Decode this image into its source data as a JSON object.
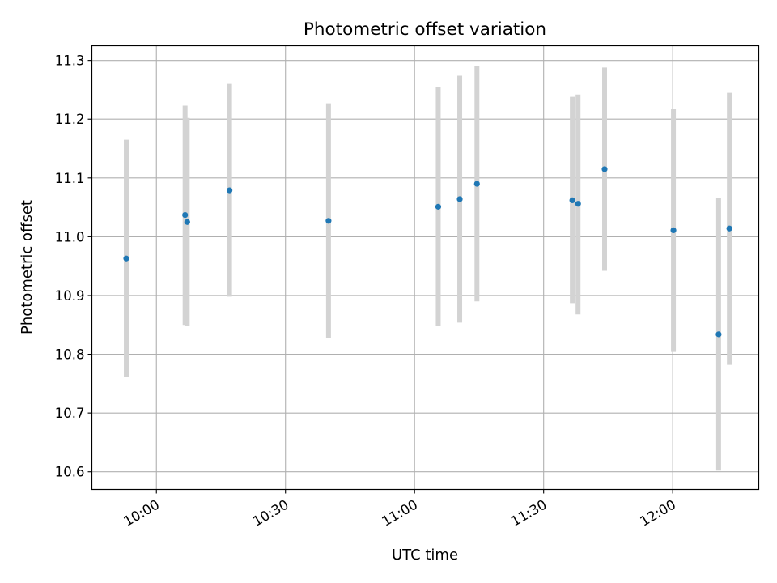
{
  "chart_data": {
    "type": "scatter",
    "title": "Photometric offset variation",
    "xlabel": "UTC time",
    "ylabel": "Photometric offset",
    "x_unit": "time of day (HH:MM)",
    "xlim": [
      "09:45",
      "12:20"
    ],
    "ylim": [
      10.57,
      11.325
    ],
    "x_ticks": [
      "10:00",
      "10:30",
      "11:00",
      "11:30",
      "12:00"
    ],
    "y_ticks": [
      10.6,
      10.7,
      10.8,
      10.9,
      11.0,
      11.1,
      11.2,
      11.3
    ],
    "y_tick_labels": [
      "10.6",
      "10.7",
      "10.8",
      "10.9",
      "11.0",
      "11.1",
      "11.2",
      "11.3"
    ],
    "grid": true,
    "marker_color": "#1f77b4",
    "errorbar_color": "#d3d3d3",
    "series": [
      {
        "points": [
          {
            "time": "09:53",
            "y": 10.963,
            "y_low": 10.762,
            "y_high": 11.165
          },
          {
            "time": "10:06:40",
            "y": 11.037,
            "y_low": 10.85,
            "y_high": 11.223
          },
          {
            "time": "10:07:10",
            "y": 11.025,
            "y_low": 10.848,
            "y_high": 11.202
          },
          {
            "time": "10:17",
            "y": 11.079,
            "y_low": 10.898,
            "y_high": 11.26
          },
          {
            "time": "10:40",
            "y": 11.027,
            "y_low": 10.827,
            "y_high": 11.227
          },
          {
            "time": "11:05:30",
            "y": 11.051,
            "y_low": 10.848,
            "y_high": 11.254
          },
          {
            "time": "11:10:30",
            "y": 11.064,
            "y_low": 10.854,
            "y_high": 11.274
          },
          {
            "time": "11:14:30",
            "y": 11.09,
            "y_low": 10.89,
            "y_high": 11.29
          },
          {
            "time": "11:36:40",
            "y": 11.062,
            "y_low": 10.887,
            "y_high": 11.238
          },
          {
            "time": "11:38",
            "y": 11.056,
            "y_low": 10.868,
            "y_high": 11.242
          },
          {
            "time": "11:44:10",
            "y": 11.115,
            "y_low": 10.942,
            "y_high": 11.288
          },
          {
            "time": "12:00:10",
            "y": 11.011,
            "y_low": 10.804,
            "y_high": 11.218
          },
          {
            "time": "12:10:40",
            "y": 10.834,
            "y_low": 10.602,
            "y_high": 11.066
          },
          {
            "time": "12:13:10",
            "y": 11.014,
            "y_low": 10.782,
            "y_high": 11.245
          }
        ]
      }
    ]
  }
}
